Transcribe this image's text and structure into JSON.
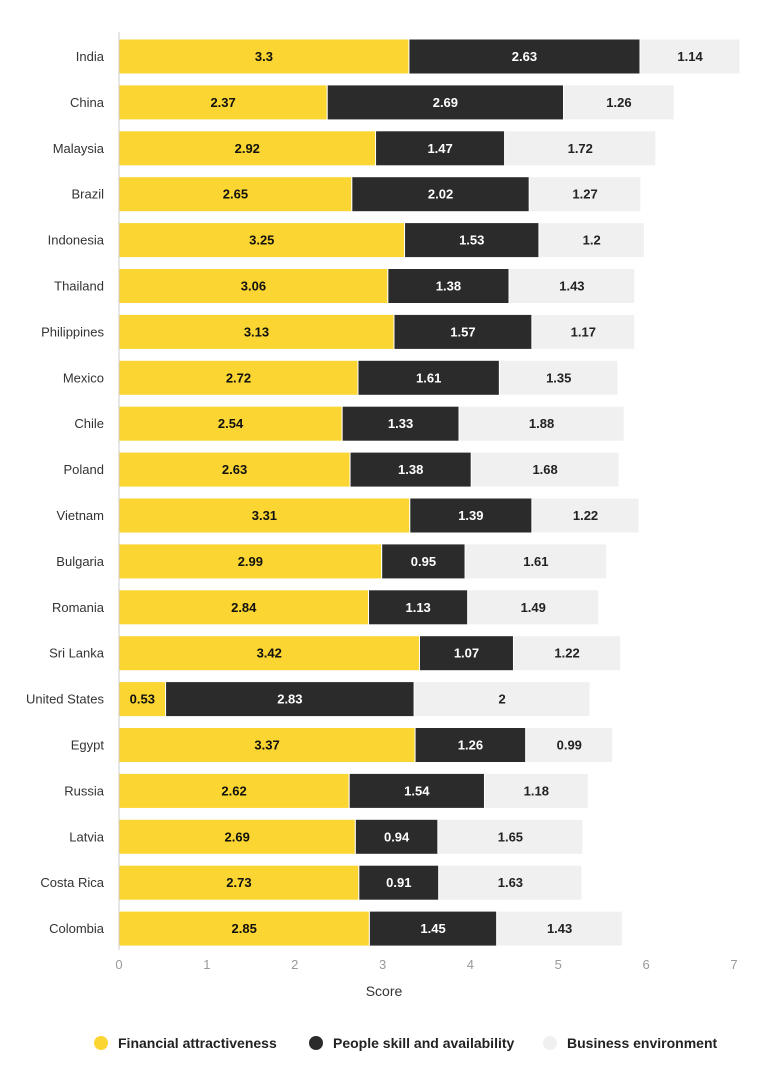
{
  "chart_data": {
    "type": "bar",
    "orientation": "horizontal",
    "stacked": true,
    "categories": [
      "India",
      "China",
      "Malaysia",
      "Brazil",
      "Indonesia",
      "Thailand",
      "Philippines",
      "Mexico",
      "Chile",
      "Poland",
      "Vietnam",
      "Bulgaria",
      "Romania",
      "Sri Lanka",
      "United States",
      "Egypt",
      "Russia",
      "Latvia",
      "Costa Rica",
      "Colombia"
    ],
    "series": [
      {
        "name": "Financial attractiveness",
        "color": "#FBD531",
        "label_color": "#111111",
        "values": [
          3.3,
          2.37,
          2.92,
          2.65,
          3.25,
          3.06,
          3.13,
          2.72,
          2.54,
          2.63,
          3.31,
          2.99,
          2.84,
          3.42,
          0.53,
          3.37,
          2.62,
          2.69,
          2.73,
          2.85
        ]
      },
      {
        "name": "People skill and availability",
        "color": "#2B2B2B",
        "label_color": "#ffffff",
        "values": [
          2.63,
          2.69,
          1.47,
          2.02,
          1.53,
          1.38,
          1.57,
          1.61,
          1.33,
          1.38,
          1.39,
          0.95,
          1.13,
          1.07,
          2.83,
          1.26,
          1.54,
          0.94,
          0.91,
          1.45
        ]
      },
      {
        "name": "Business environment",
        "color": "#F0F0F0",
        "label_color": "#222222",
        "values": [
          1.14,
          1.26,
          1.72,
          1.27,
          1.2,
          1.43,
          1.17,
          1.35,
          1.88,
          1.68,
          1.22,
          1.61,
          1.49,
          1.22,
          2,
          0.99,
          1.18,
          1.65,
          1.63,
          1.43
        ]
      }
    ],
    "xlabel": "Score",
    "ylabel": "",
    "xlim": [
      0,
      7
    ],
    "xticks": [
      0,
      1,
      2,
      3,
      4,
      5,
      6,
      7
    ],
    "legend_position": "bottom",
    "grid": false
  }
}
